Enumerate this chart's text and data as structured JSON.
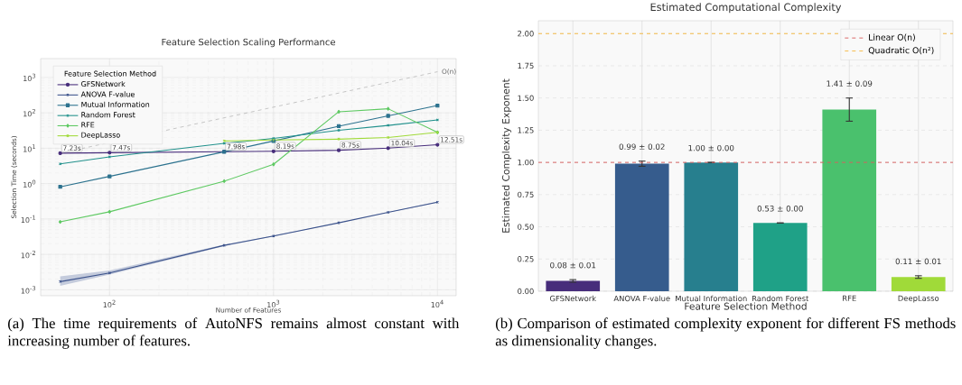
{
  "chart_data": [
    {
      "type": "line",
      "title": "Feature Selection Scaling Performance",
      "xlabel": "Number of Features",
      "ylabel": "Selection Time (seconds)",
      "legend_title": "Feature Selection Method",
      "x": [
        50,
        100,
        500,
        1000,
        2500,
        5000,
        10000
      ],
      "series": [
        {
          "name": "GFSNetwork",
          "color": "#472d7b",
          "marker": "circle",
          "values": [
            7.23,
            7.47,
            7.98,
            8.19,
            8.75,
            10.04,
            12.51
          ],
          "value_labels": [
            "7.23s",
            "7.47s",
            "7.98s",
            "8.19s",
            "8.75s",
            "10.04s",
            "12.51s"
          ]
        },
        {
          "name": "ANOVA F-value",
          "color": "#3b528b",
          "marker": "cross",
          "values": [
            0.0017,
            0.003,
            0.018,
            0.033,
            0.078,
            0.155,
            0.3
          ],
          "lower": [
            0.0013,
            0.0027,
            0.017,
            0.032,
            0.077,
            0.153,
            0.29
          ],
          "upper": [
            0.0024,
            0.0035,
            0.019,
            0.034,
            0.079,
            0.157,
            0.31
          ]
        },
        {
          "name": "Mutual Information",
          "color": "#2c728e",
          "marker": "square",
          "values": [
            0.81,
            1.6,
            7.9,
            16,
            42,
            82,
            160
          ]
        },
        {
          "name": "Random Forest",
          "color": "#21918c",
          "marker": "cross",
          "values": [
            3.6,
            5.7,
            13.7,
            19,
            32,
            44,
            63
          ]
        },
        {
          "name": "RFE",
          "color": "#5ec962",
          "marker": "diamond",
          "values": [
            0.083,
            0.16,
            1.17,
            3.5,
            107,
            130,
            28
          ]
        },
        {
          "name": "DeepLasso",
          "color": "#a0da39",
          "marker": "cross",
          "values": [
            null,
            null,
            16,
            17,
            18,
            20,
            28
          ]
        },
        {
          "color": "#999999",
          "line_style": "dashed",
          "marker": "none",
          "x": [
            50,
            10000
          ],
          "values": [
            7.23,
            1446
          ]
        }
      ],
      "annotations": [
        {
          "text": "O(n)",
          "x": 10000,
          "y": 1446
        },
        "(a) The time requirements of AutoNFS remains almost constant with increasing number of features."
      ],
      "log": "xy",
      "xlim": [
        38,
        13000
      ],
      "ylim": [
        0.00068,
        3400
      ],
      "xticks": [
        {
          "value": 100,
          "label": "10$^{2}$"
        },
        {
          "value": 1000,
          "label": "10$^{3}$"
        },
        {
          "value": 10000,
          "label": "10$^{4}$"
        }
      ],
      "yticks": [
        {
          "value": 0.001,
          "label": "10$^{-3}$"
        },
        {
          "value": 0.01,
          "label": "10$^{-2}$"
        },
        {
          "value": 0.1,
          "label": "10$^{-1}$"
        },
        {
          "value": 1,
          "label": "10$^{0}$"
        },
        {
          "value": 10,
          "label": "10$^{1}$"
        },
        {
          "value": 100,
          "label": "10$^{2}$"
        },
        {
          "value": 1000,
          "label": "10$^{3}$"
        }
      ],
      "grid": true,
      "legend": "top left"
    },
    {
      "type": "bar",
      "title": "Estimated Computational Complexity",
      "xlabel": "Feature Selection Method",
      "ylabel": "Estimated Complexity Exponent",
      "categories": [
        "GFSNetwork",
        "ANOVA F-value",
        "Mutual Information",
        "Random Forest",
        "RFE",
        "DeepLasso"
      ],
      "values": [
        0.08,
        0.99,
        1.0,
        0.53,
        1.41,
        0.11
      ],
      "errors": [
        0.01,
        0.02,
        0.0,
        0.0,
        0.09,
        0.01
      ],
      "value_labels": [
        "0.08 ± 0.01",
        "0.99 ± 0.02",
        "1.00 ± 0.00",
        "0.53 ± 0.00",
        "1.41 ± 0.09",
        "0.11 ± 0.01"
      ],
      "colors": [
        "#472d7b",
        "#365c8d",
        "#277f8e",
        "#1fa187",
        "#4ac16d",
        "#a0da39"
      ],
      "ylim": [
        0,
        2.1
      ],
      "yticks": [
        {
          "value": 0,
          "label": "0.00"
        },
        {
          "value": 0.25,
          "label": "0.25"
        },
        {
          "value": 0.5,
          "label": "0.50"
        },
        {
          "value": 0.75,
          "label": "0.75"
        },
        {
          "value": 1,
          "label": "1.00"
        },
        {
          "value": 1.25,
          "label": "1.25"
        },
        {
          "value": 1.5,
          "label": "1.50"
        },
        {
          "value": 1.75,
          "label": "1.75"
        },
        {
          "value": 2,
          "label": "2.00"
        }
      ],
      "ref_lines": [
        {
          "axis": "y",
          "value": 1,
          "label": "Linear O(n)",
          "color": "#d9605f",
          "line_style": "dashed"
        },
        {
          "axis": "y",
          "value": 2,
          "label": "Quadratic O(n²)",
          "color": "#f5b942",
          "line_style": "dashed"
        }
      ],
      "annotations": [
        "(b) Comparison of estimated complexity exponent for different FS methods as dimensionality changes."
      ],
      "grid": true,
      "legend": "top right"
    }
  ]
}
